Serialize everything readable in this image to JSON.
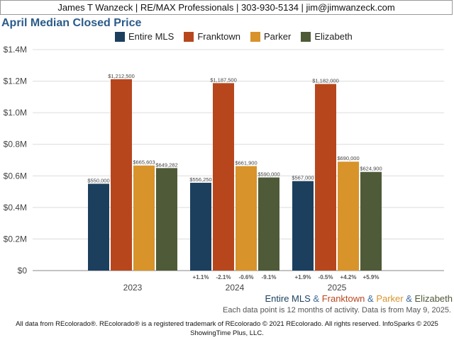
{
  "header": {
    "text": "James T Wanzeck | RE/MAX Professionals | 303-930-5134 | jim@jimwanzeck.com"
  },
  "colors": {
    "Entire MLS": "#1c3f5e",
    "Franktown": "#b8461d",
    "Parker": "#d8932a",
    "Elizabeth": "#4f5a38",
    "title": "#2a5b8a"
  },
  "chart_data": {
    "type": "bar",
    "title": "April Median Closed Price",
    "categories": [
      "2023",
      "2024",
      "2025"
    ],
    "ylim": [
      0,
      1400000
    ],
    "yticks": [
      0,
      200000,
      400000,
      600000,
      800000,
      1000000,
      1200000,
      1400000
    ],
    "ytick_labels": [
      "$0",
      "$0.2M",
      "$0.4M",
      "$0.6M",
      "$0.8M",
      "$1.0M",
      "$1.2M",
      "$1.4M"
    ],
    "grid": true,
    "legend_position": "top",
    "series": [
      {
        "name": "Entire MLS",
        "values": [
          550000,
          556250,
          567000
        ],
        "labels": [
          "$550,000",
          "$556,250",
          "$567,000"
        ],
        "changes": [
          "",
          "+1.1%",
          "+1.9%"
        ]
      },
      {
        "name": "Franktown",
        "values": [
          1212500,
          1187500,
          1182000
        ],
        "labels": [
          "$1,212,500",
          "$1,187,500",
          "$1,182,000"
        ],
        "changes": [
          "",
          "-2.1%",
          "-0.5%"
        ]
      },
      {
        "name": "Parker",
        "values": [
          665603,
          661900,
          690000
        ],
        "labels": [
          "$665,603",
          "$661,900",
          "$690,000"
        ],
        "changes": [
          "",
          "-0.6%",
          "+4.2%"
        ]
      },
      {
        "name": "Elizabeth",
        "values": [
          649282,
          590000,
          624900
        ],
        "labels": [
          "$649,282",
          "$590,000",
          "$624,900"
        ],
        "changes": [
          "",
          "-9.1%",
          "+5.9%"
        ]
      }
    ]
  },
  "bottom_legend": {
    "items": [
      "Entire MLS",
      "Franktown",
      "Parker",
      "Elizabeth"
    ],
    "separator": " & "
  },
  "note": "Each data point is 12 months of activity. Data is from May 9, 2025.",
  "footer": {
    "line1": "All data from REcolorado®. REcolorado® is a registered trademark of REcolorado © 2021 REcolorado. All rights reserved. InfoSparks © 2025",
    "line2": "ShowingTime Plus, LLC."
  }
}
